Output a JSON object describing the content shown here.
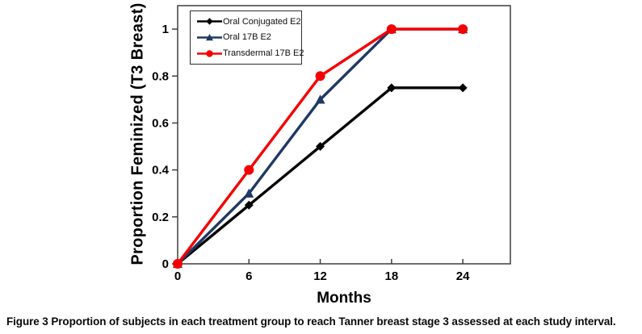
{
  "figure": {
    "caption_label": "Figure 3",
    "caption_text": "Proportion of subjects in each treatment group to reach Tanner breast stage 3 assessed at each study interval."
  },
  "chart_data": {
    "type": "line",
    "title": "",
    "xlabel": "Months",
    "ylabel": "Proportion Feminized (T3 Breast)",
    "x": [
      0,
      6,
      12,
      18,
      24
    ],
    "x_ticks": [
      0,
      6,
      12,
      18,
      24
    ],
    "y_ticks": [
      0,
      0.2,
      0.4,
      0.6,
      0.8,
      1
    ],
    "xlim": [
      0,
      28
    ],
    "ylim": [
      0,
      1.1
    ],
    "grid": false,
    "legend_position": "top-left-inside",
    "colors": {
      "black_series": "#000000",
      "navy_series": "#1F3864",
      "red_series": "#F40000",
      "axis": "#3f3f3f"
    },
    "series": [
      {
        "name": "Oral Conjugated E2",
        "color": "#000000",
        "marker": "diamond",
        "values": [
          0,
          0.25,
          0.5,
          0.75,
          0.75
        ]
      },
      {
        "name": "Oral 17B E2",
        "color": "#1F3864",
        "marker": "triangle",
        "values": [
          0,
          0.3,
          0.7,
          1,
          1
        ]
      },
      {
        "name": "Transdermal 17B E2",
        "color": "#F40000",
        "marker": "circle",
        "values": [
          0,
          0.4,
          0.8,
          1,
          1
        ]
      }
    ]
  }
}
